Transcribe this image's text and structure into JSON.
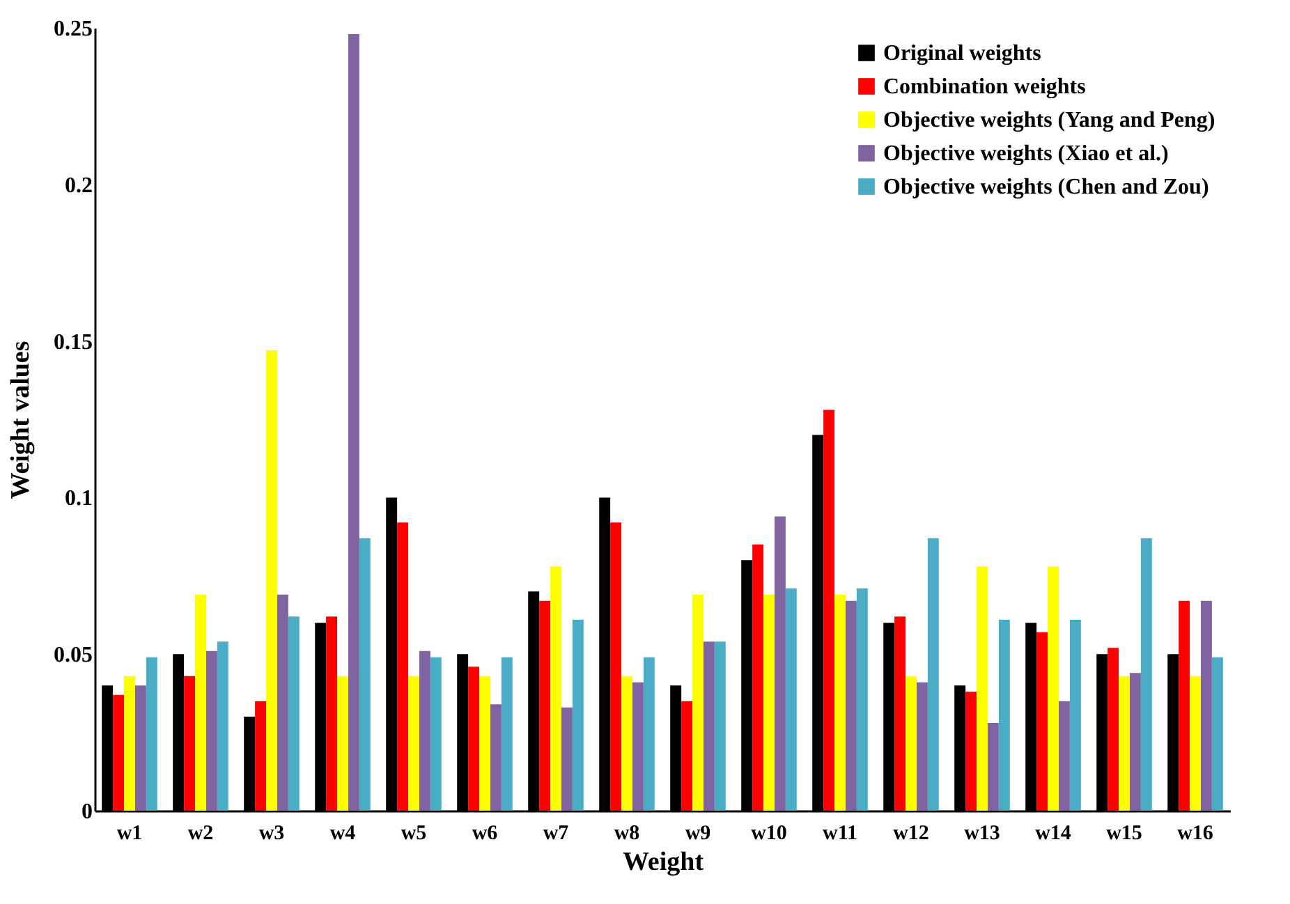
{
  "chart_data": {
    "type": "bar",
    "xlabel": "Weight",
    "ylabel": "Weight values",
    "categories": [
      "w1",
      "w2",
      "w3",
      "w4",
      "w5",
      "w6",
      "w7",
      "w8",
      "w9",
      "w10",
      "w11",
      "w12",
      "w13",
      "w14",
      "w15",
      "w16"
    ],
    "series": [
      {
        "name": "Original weights",
        "color": "#000000",
        "values": [
          0.04,
          0.05,
          0.03,
          0.06,
          0.1,
          0.05,
          0.07,
          0.1,
          0.04,
          0.08,
          0.12,
          0.06,
          0.04,
          0.06,
          0.05,
          0.05
        ]
      },
      {
        "name": "Combination weights",
        "color": "#ff0000",
        "values": [
          0.037,
          0.043,
          0.035,
          0.062,
          0.092,
          0.046,
          0.067,
          0.092,
          0.035,
          0.085,
          0.128,
          0.062,
          0.038,
          0.057,
          0.052,
          0.067
        ]
      },
      {
        "name": "Objective weights (Yang and Peng)",
        "color": "#ffff00",
        "values": [
          0.043,
          0.069,
          0.147,
          0.043,
          0.043,
          0.043,
          0.078,
          0.043,
          0.069,
          0.069,
          0.069,
          0.043,
          0.078,
          0.078,
          0.043,
          0.043
        ]
      },
      {
        "name": "Objective weights (Xiao et al.)",
        "color": "#8064a2",
        "values": [
          0.04,
          0.051,
          0.069,
          0.248,
          0.051,
          0.034,
          0.033,
          0.041,
          0.054,
          0.094,
          0.067,
          0.041,
          0.028,
          0.035,
          0.044,
          0.067
        ]
      },
      {
        "name": "Objective weights (Chen and Zou)",
        "color": "#4bacc6",
        "values": [
          0.049,
          0.054,
          0.062,
          0.087,
          0.049,
          0.049,
          0.061,
          0.049,
          0.054,
          0.071,
          0.071,
          0.087,
          0.061,
          0.061,
          0.087,
          0.049
        ]
      }
    ],
    "ylim": [
      0,
      0.25
    ],
    "yticks": [
      0,
      0.05,
      0.1,
      0.15,
      0.2,
      0.25
    ],
    "legend": "top right"
  }
}
